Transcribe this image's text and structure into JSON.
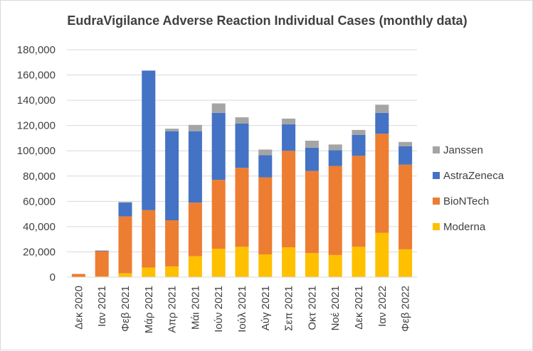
{
  "chart_data": {
    "type": "bar",
    "stacked": true,
    "title": "EudraVigilance Adverse Reaction Individual Cases (monthly data)",
    "xlabel": "",
    "ylabel": "",
    "ylim": [
      0,
      180000
    ],
    "y_ticks": [
      "0",
      "20,000",
      "40,000",
      "60,000",
      "80,000",
      "100,000",
      "120,000",
      "140,000",
      "160,000",
      "180,000"
    ],
    "grid": true,
    "legend_position": "right",
    "categories": [
      "Δεκ 2020",
      "Ιαν 2021",
      "Φεβ 2021",
      "Μάρ 2021",
      "Απρ 2021",
      "Μάι 2021",
      "Ιούν 2021",
      "Ιούλ 2021",
      "Αύγ 2021",
      "Σεπ 2021",
      "Οκτ 2021",
      "Νοέ 2021",
      "Δεκ 2021",
      "Ιαν 2022",
      "Φεβ 2022"
    ],
    "series": [
      {
        "name": "Moderna",
        "color": "#FFC000",
        "values": [
          0,
          500,
          3000,
          7500,
          8500,
          16500,
          22500,
          24000,
          18000,
          23500,
          19000,
          17500,
          24000,
          35000,
          22000
        ]
      },
      {
        "name": "BioNTech",
        "color": "#ED7D31",
        "values": [
          2500,
          20000,
          45000,
          45500,
          36500,
          42500,
          54500,
          62500,
          61000,
          76500,
          65000,
          70500,
          72000,
          78500,
          67000
        ]
      },
      {
        "name": "AstraZeneca",
        "color": "#4472C4",
        "values": [
          0,
          500,
          11000,
          110500,
          70500,
          56500,
          53000,
          35000,
          17500,
          21000,
          18500,
          12500,
          16500,
          16500,
          14500
        ]
      },
      {
        "name": "Janssen",
        "color": "#A5A5A5",
        "values": [
          0,
          0,
          500,
          0,
          2000,
          5000,
          7500,
          5000,
          4500,
          4500,
          5500,
          4500,
          4000,
          6500,
          3500
        ]
      }
    ]
  }
}
